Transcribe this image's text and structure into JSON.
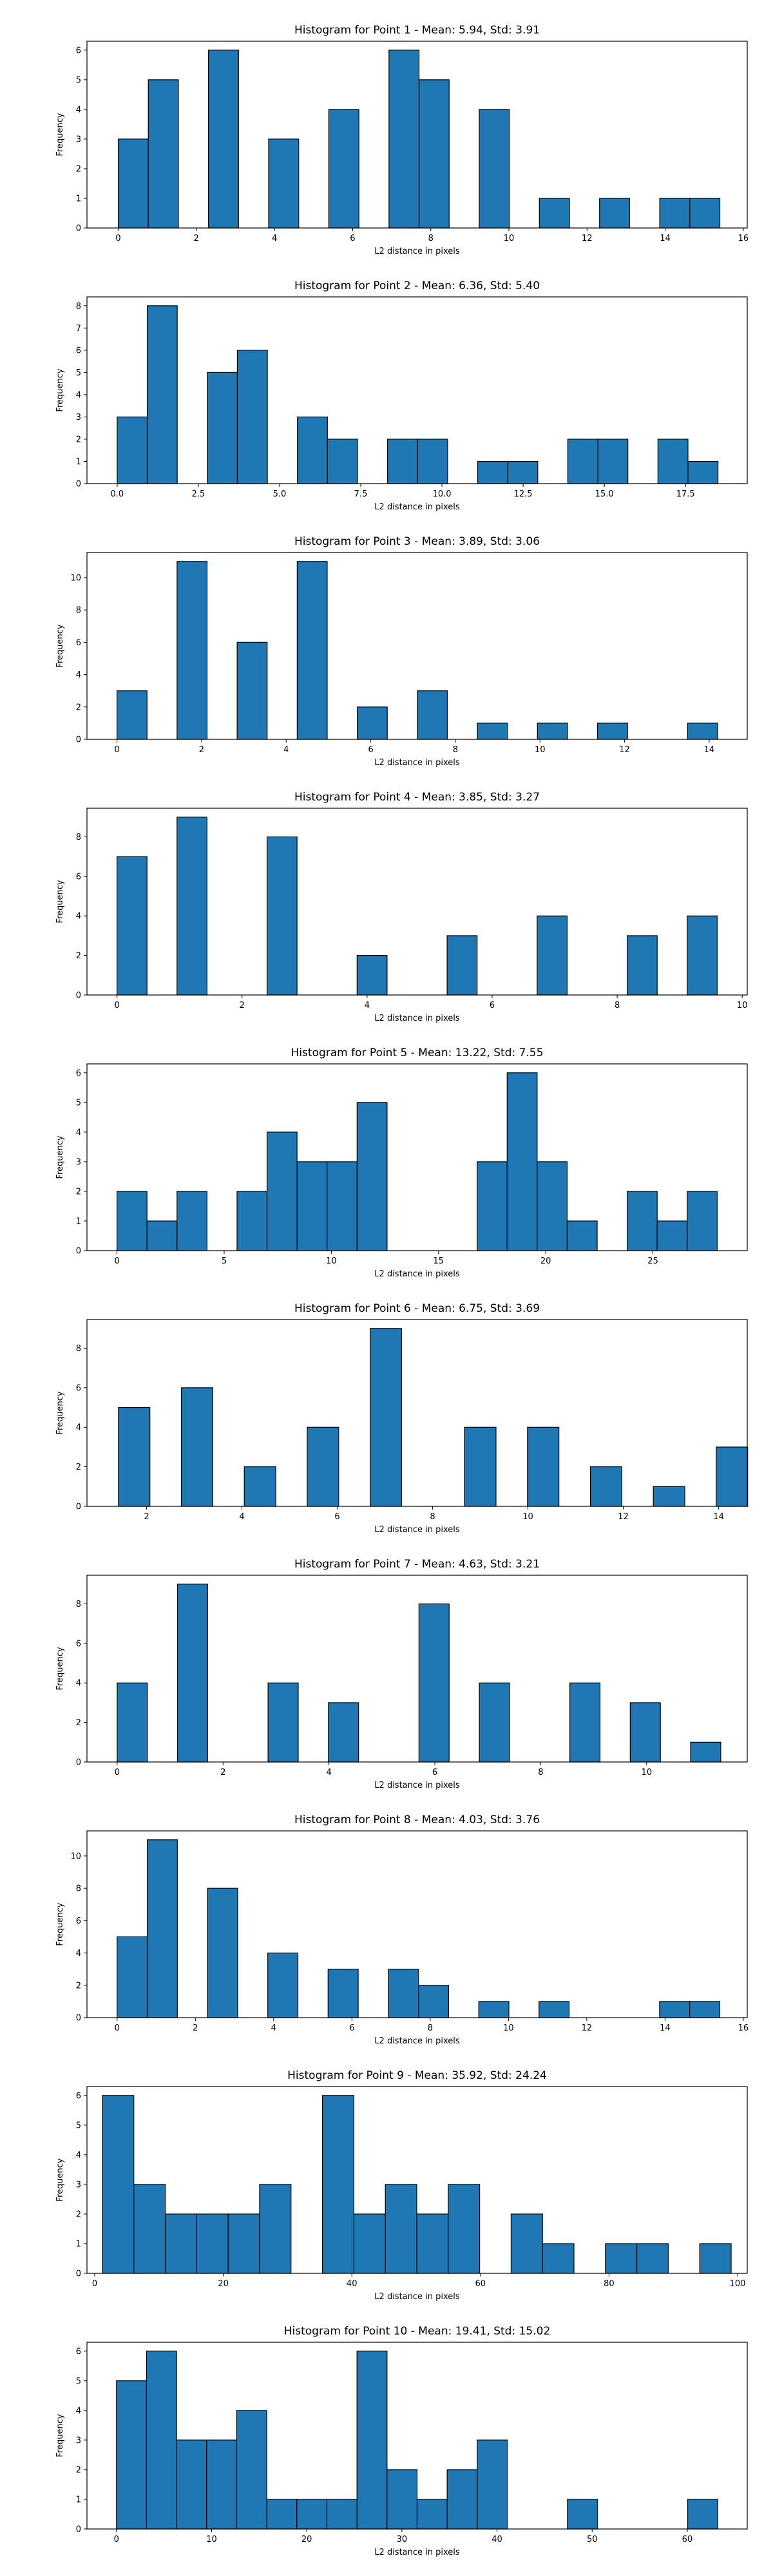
{
  "chart_data": [
    {
      "type": "bar",
      "title": "Histogram for Point 1 - Mean: 5.94, Std: 3.91",
      "xlabel": "L2 distance in pixels",
      "ylabel": "Frequency",
      "xlim": [
        -0.8,
        16.1
      ],
      "ylim": [
        0,
        6.3
      ],
      "x_ticks": [
        0,
        2,
        4,
        6,
        8,
        10,
        12,
        14,
        16
      ],
      "y_ticks": [
        0,
        1,
        2,
        3,
        4,
        5,
        6
      ],
      "bin_start": 0.0,
      "bin_width": 0.77,
      "values": [
        3,
        5,
        0,
        6,
        0,
        3,
        0,
        4,
        0,
        6,
        5,
        0,
        4,
        0,
        1,
        0,
        1,
        0,
        1,
        1
      ]
    },
    {
      "type": "bar",
      "title": "Histogram for Point 2 - Mean: 6.36, Std: 5.40",
      "xlabel": "L2 distance in pixels",
      "ylabel": "Frequency",
      "xlim": [
        -0.93,
        19.4
      ],
      "ylim": [
        0,
        8.4
      ],
      "x_ticks": [
        0.0,
        2.5,
        5.0,
        7.5,
        10.0,
        12.5,
        15.0,
        17.5
      ],
      "x_tick_labels": [
        "0.0",
        "2.5",
        "5.0",
        "7.5",
        "10.0",
        "12.5",
        "15.0",
        "17.5"
      ],
      "y_ticks": [
        0,
        1,
        2,
        3,
        4,
        5,
        6,
        7,
        8
      ],
      "bin_start": 0.0,
      "bin_width": 0.925,
      "values": [
        3,
        8,
        0,
        5,
        6,
        0,
        3,
        2,
        0,
        2,
        2,
        0,
        1,
        1,
        0,
        2,
        2,
        0,
        2,
        1
      ]
    },
    {
      "type": "bar",
      "title": "Histogram for Point 3 - Mean: 3.89, Std: 3.06",
      "xlabel": "L2 distance in pixels",
      "ylabel": "Frequency",
      "xlim": [
        -0.71,
        14.9
      ],
      "ylim": [
        0,
        11.55
      ],
      "x_ticks": [
        0,
        2,
        4,
        6,
        8,
        10,
        12,
        14
      ],
      "y_ticks": [
        0,
        2,
        4,
        6,
        8,
        10
      ],
      "bin_start": 0.0,
      "bin_width": 0.71,
      "values": [
        3,
        0,
        11,
        0,
        6,
        0,
        11,
        0,
        2,
        0,
        3,
        0,
        1,
        0,
        1,
        0,
        1,
        0,
        0,
        1
      ]
    },
    {
      "type": "bar",
      "title": "Histogram for Point 4 - Mean: 3.85, Std: 3.27",
      "xlabel": "L2 distance in pixels",
      "ylabel": "Frequency",
      "xlim": [
        -0.48,
        10.08
      ],
      "ylim": [
        0,
        9.45
      ],
      "x_ticks": [
        0,
        2,
        4,
        6,
        8,
        10
      ],
      "y_ticks": [
        0,
        2,
        4,
        6,
        8
      ],
      "bin_start": 0.0,
      "bin_width": 0.48,
      "values": [
        7,
        0,
        9,
        0,
        0,
        8,
        0,
        0,
        2,
        0,
        0,
        3,
        0,
        0,
        4,
        0,
        0,
        3,
        0,
        4
      ]
    },
    {
      "type": "bar",
      "title": "Histogram for Point 5 - Mean: 13.22, Std: 7.55",
      "xlabel": "L2 distance in pixels",
      "ylabel": "Frequency",
      "xlim": [
        -1.4,
        29.4
      ],
      "ylim": [
        0,
        6.3
      ],
      "x_ticks": [
        0,
        5,
        10,
        15,
        20,
        25
      ],
      "y_ticks": [
        0,
        1,
        2,
        3,
        4,
        5,
        6
      ],
      "bin_start": 0.0,
      "bin_width": 1.4,
      "values": [
        2,
        1,
        2,
        0,
        2,
        4,
        3,
        3,
        5,
        0,
        0,
        0,
        3,
        6,
        3,
        1,
        0,
        2,
        1,
        2
      ]
    },
    {
      "type": "bar",
      "title": "Histogram for Point 6 - Mean: 6.75, Std: 3.69",
      "xlabel": "L2 distance in pixels",
      "ylabel": "Frequency",
      "xlim": [
        0.75,
        14.6
      ],
      "ylim": [
        0,
        9.45
      ],
      "x_ticks": [
        2,
        4,
        6,
        8,
        10,
        12,
        14
      ],
      "y_ticks": [
        0,
        2,
        4,
        6,
        8
      ],
      "bin_start": 1.41,
      "bin_width": 0.66,
      "values": [
        5,
        0,
        6,
        0,
        2,
        0,
        4,
        0,
        9,
        0,
        0,
        4,
        0,
        4,
        0,
        2,
        0,
        1,
        0,
        3
      ]
    },
    {
      "type": "bar",
      "title": "Histogram for Point 7 - Mean: 4.63, Std: 3.21",
      "xlabel": "L2 distance in pixels",
      "ylabel": "Frequency",
      "xlim": [
        -0.57,
        11.9
      ],
      "ylim": [
        0,
        9.45
      ],
      "x_ticks": [
        0,
        2,
        4,
        6,
        8,
        10
      ],
      "y_ticks": [
        0,
        2,
        4,
        6,
        8
      ],
      "bin_start": 0.0,
      "bin_width": 0.57,
      "values": [
        4,
        0,
        9,
        0,
        0,
        4,
        0,
        3,
        0,
        0,
        8,
        0,
        4,
        0,
        0,
        4,
        0,
        3,
        0,
        1
      ]
    },
    {
      "type": "bar",
      "title": "Histogram for Point 8 - Mean: 4.03, Std: 3.76",
      "xlabel": "L2 distance in pixels",
      "ylabel": "Frequency",
      "xlim": [
        -0.77,
        16.1
      ],
      "ylim": [
        0,
        11.55
      ],
      "x_ticks": [
        0,
        2,
        4,
        6,
        8,
        10,
        12,
        14,
        16
      ],
      "y_ticks": [
        0,
        2,
        4,
        6,
        8,
        10
      ],
      "bin_start": 0.0,
      "bin_width": 0.77,
      "values": [
        5,
        11,
        0,
        8,
        0,
        4,
        0,
        3,
        0,
        3,
        2,
        0,
        1,
        0,
        1,
        0,
        0,
        0,
        1,
        1
      ]
    },
    {
      "type": "bar",
      "title": "Histogram for Point 9 - Mean: 35.92, Std: 24.24",
      "xlabel": "L2 distance in pixels",
      "ylabel": "Frequency",
      "xlim": [
        -1.2,
        101.5
      ],
      "ylim": [
        0,
        6.3
      ],
      "x_ticks": [
        0,
        20,
        40,
        60,
        80,
        100
      ],
      "y_ticks": [
        0,
        1,
        2,
        3,
        4,
        5,
        6
      ],
      "bin_start": 1.2,
      "bin_width": 4.89,
      "values": [
        6,
        3,
        2,
        2,
        2,
        3,
        0,
        6,
        2,
        3,
        2,
        3,
        0,
        2,
        1,
        0,
        1,
        1,
        0,
        1
      ]
    },
    {
      "type": "bar",
      "title": "Histogram for Point 10 - Mean: 19.41, Std: 15.02",
      "xlabel": "L2 distance in pixels",
      "ylabel": "Frequency",
      "xlim": [
        -3.1,
        66.3
      ],
      "ylim": [
        0,
        6.3
      ],
      "x_ticks": [
        0,
        10,
        20,
        30,
        40,
        50,
        60
      ],
      "y_ticks": [
        0,
        1,
        2,
        3,
        4,
        5,
        6
      ],
      "bin_start": 0.0,
      "bin_width": 3.16,
      "values": [
        5,
        6,
        3,
        3,
        4,
        1,
        1,
        1,
        6,
        2,
        1,
        2,
        3,
        0,
        0,
        1,
        0,
        0,
        0,
        1
      ]
    }
  ],
  "style": {
    "bar_color": "#1f77b4",
    "edge_color": "#000000",
    "axis_color": "#000000",
    "text_color": "#000000",
    "background": "#ffffff"
  }
}
